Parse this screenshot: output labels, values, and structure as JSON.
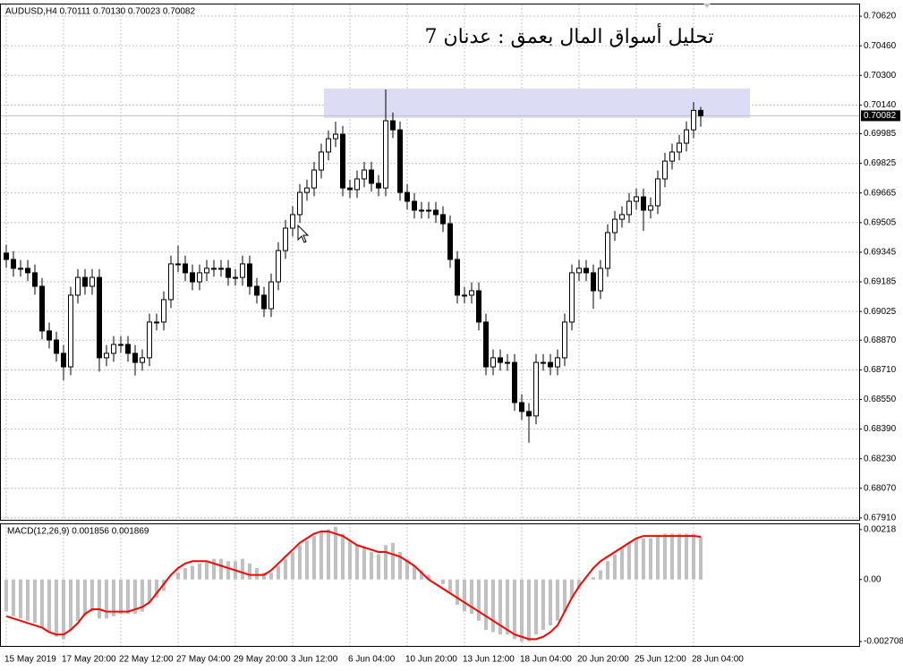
{
  "chart_data": [
    {
      "type": "candlestick",
      "header": "AUDUSD,H4  0.70111 0.70130 0.70023 0.70082",
      "title": "تحليل أسواق المال بعمق : عدنان 7",
      "categories": [
        "15 May 2019",
        null,
        null,
        null,
        null,
        null,
        null,
        null,
        "17 May 20:00",
        null,
        null,
        null,
        null,
        null,
        null,
        null,
        "22 May 12:00",
        null,
        null,
        null,
        null,
        null,
        null,
        null,
        "27 May 04:00",
        null,
        null,
        null,
        null,
        null,
        null,
        null,
        "29 May 20:00",
        null,
        null,
        null,
        null,
        null,
        null,
        null,
        "3 Jun 12:00",
        null,
        null,
        null,
        null,
        null,
        null,
        null,
        "6 Jun 04:00",
        null,
        null,
        null,
        null,
        null,
        null,
        null,
        "10 Jun 20:00",
        null,
        null,
        null,
        null,
        null,
        null,
        null,
        "13 Jun 12:00",
        null,
        null,
        null,
        null,
        null,
        null,
        null,
        "18 Jun 04:00",
        null,
        null,
        null,
        null,
        null,
        null,
        null,
        "20 Jun 20:00",
        null,
        null,
        null,
        null,
        null,
        null,
        null,
        "25 Jun 12:00",
        null,
        null,
        null,
        null,
        null,
        null,
        null,
        "28 Jun 04:00",
        null
      ],
      "open": [
        0.6934,
        0.69306,
        0.69258,
        0.69258,
        0.69234,
        0.69161,
        0.6892,
        0.68871,
        0.68799,
        0.68726,
        0.69113,
        0.69209,
        0.69161,
        0.69209,
        0.68775,
        0.68799,
        0.68847,
        0.68847,
        0.68799,
        0.6875,
        0.68775,
        0.68968,
        0.68968,
        0.69089,
        0.69282,
        0.69282,
        0.69234,
        0.69185,
        0.69234,
        0.69258,
        0.69258,
        0.69258,
        0.69209,
        0.69209,
        0.69282,
        0.69161,
        0.69113,
        0.6904,
        0.69185,
        0.69354,
        0.69475,
        0.69548,
        0.69668,
        0.69692,
        0.69789,
        0.69886,
        0.69958,
        0.69982,
        0.69692,
        0.69683,
        0.69741,
        0.69789,
        0.69717,
        0.69692,
        0.70055,
        0.70006,
        0.69668,
        0.6962,
        0.69572,
        0.69572,
        0.69572,
        0.69548,
        0.69499,
        0.69306,
        0.69113,
        0.69113,
        0.69137,
        0.68968,
        0.68726,
        0.68775,
        0.6875,
        0.6875,
        0.68533,
        0.68485,
        0.68461,
        0.6875,
        0.6875,
        0.68726,
        0.68775,
        0.68968,
        0.69234,
        0.69258,
        0.69234,
        0.69137,
        0.69258,
        0.69451,
        0.69523,
        0.69548,
        0.6962,
        0.69644,
        0.69572,
        0.69596,
        0.69741,
        0.69837,
        0.69886,
        0.69934,
        0.70006,
        0.70111
      ],
      "high": [
        0.69385,
        0.69351,
        0.69303,
        0.69303,
        0.69279,
        0.69206,
        0.68965,
        0.68916,
        0.68844,
        0.69158,
        0.69254,
        0.69254,
        0.69254,
        0.69254,
        0.68844,
        0.68892,
        0.68892,
        0.68892,
        0.68844,
        0.6882,
        0.69013,
        0.69013,
        0.69134,
        0.69327,
        0.6938,
        0.69327,
        0.69279,
        0.69279,
        0.69303,
        0.69303,
        0.69303,
        0.69303,
        0.69254,
        0.69327,
        0.69327,
        0.69206,
        0.69158,
        0.6923,
        0.69399,
        0.6952,
        0.69593,
        0.69713,
        0.69737,
        0.69834,
        0.69931,
        0.70003,
        0.7005,
        0.70027,
        0.69737,
        0.69786,
        0.69834,
        0.69834,
        0.69762,
        0.70224,
        0.701,
        0.70051,
        0.69713,
        0.69665,
        0.69617,
        0.69617,
        0.69617,
        0.69593,
        0.69544,
        0.69351,
        0.69158,
        0.69182,
        0.69182,
        0.69013,
        0.6882,
        0.6882,
        0.68795,
        0.68795,
        0.68578,
        0.6853,
        0.68795,
        0.68795,
        0.68795,
        0.6882,
        0.69013,
        0.69279,
        0.69303,
        0.69303,
        0.69279,
        0.69303,
        0.69496,
        0.69568,
        0.69593,
        0.69665,
        0.69689,
        0.69689,
        0.69641,
        0.69786,
        0.69882,
        0.69931,
        0.69979,
        0.70051,
        0.70156,
        0.7013
      ],
      "low": [
        0.69261,
        0.69213,
        0.69213,
        0.69189,
        0.69116,
        0.68875,
        0.68826,
        0.68754,
        0.68654,
        0.68681,
        0.69068,
        0.69116,
        0.69116,
        0.687,
        0.6873,
        0.68754,
        0.68802,
        0.68754,
        0.6868,
        0.68705,
        0.6873,
        0.68923,
        0.68923,
        0.69044,
        0.69237,
        0.69189,
        0.6914,
        0.6914,
        0.69189,
        0.69213,
        0.69213,
        0.69164,
        0.69164,
        0.69164,
        0.69116,
        0.69068,
        0.68995,
        0.68995,
        0.6914,
        0.69309,
        0.6943,
        0.69503,
        0.69623,
        0.69647,
        0.69744,
        0.69841,
        0.69913,
        0.69647,
        0.69638,
        0.69638,
        0.69696,
        0.69672,
        0.69647,
        0.69647,
        0.69961,
        0.69623,
        0.69575,
        0.69527,
        0.69527,
        0.69527,
        0.69503,
        0.69454,
        0.69261,
        0.69068,
        0.69068,
        0.69068,
        0.68923,
        0.68681,
        0.68681,
        0.68705,
        0.68705,
        0.68488,
        0.6844,
        0.68316,
        0.68416,
        0.68705,
        0.68681,
        0.68681,
        0.6873,
        0.68923,
        0.69189,
        0.69189,
        0.6904,
        0.69092,
        0.69213,
        0.69406,
        0.69478,
        0.69503,
        0.69575,
        0.6946,
        0.69527,
        0.69551,
        0.69696,
        0.69792,
        0.69841,
        0.69889,
        0.69961,
        0.70023
      ],
      "close": [
        0.69306,
        0.69258,
        0.69258,
        0.69234,
        0.69161,
        0.6892,
        0.68871,
        0.68799,
        0.68726,
        0.69113,
        0.69209,
        0.69161,
        0.69209,
        0.68775,
        0.68799,
        0.68847,
        0.68847,
        0.68799,
        0.6875,
        0.68775,
        0.68968,
        0.68968,
        0.69089,
        0.69282,
        0.69282,
        0.69234,
        0.69185,
        0.69234,
        0.69258,
        0.69258,
        0.69258,
        0.69209,
        0.69209,
        0.69282,
        0.69161,
        0.69113,
        0.6904,
        0.69185,
        0.69354,
        0.69475,
        0.69548,
        0.69668,
        0.69692,
        0.69789,
        0.69886,
        0.69958,
        0.69982,
        0.69692,
        0.69683,
        0.69741,
        0.69789,
        0.69717,
        0.69692,
        0.70055,
        0.70006,
        0.69668,
        0.6962,
        0.69572,
        0.69572,
        0.69572,
        0.69548,
        0.69499,
        0.69306,
        0.69113,
        0.69113,
        0.69137,
        0.68968,
        0.68726,
        0.68775,
        0.6875,
        0.6875,
        0.68533,
        0.68485,
        0.68461,
        0.6875,
        0.6875,
        0.68726,
        0.68775,
        0.68968,
        0.69234,
        0.69258,
        0.69234,
        0.69137,
        0.69258,
        0.69451,
        0.69523,
        0.69548,
        0.6962,
        0.69644,
        0.69572,
        0.69596,
        0.69741,
        0.69837,
        0.69886,
        0.69934,
        0.70006,
        0.70111,
        0.70082
      ],
      "up_color": "#ffffff",
      "down_color": "#000000",
      "outline_color": "#000000",
      "ylim": [
        0.679,
        0.70683
      ],
      "yticks": [
        {
          "value": 0.7062,
          "label": "0.70620"
        },
        {
          "value": 0.7046,
          "label": "0.70460"
        },
        {
          "value": 0.703,
          "label": "0.70300"
        },
        {
          "value": 0.7014,
          "label": "0.70140"
        },
        0.69985,
        0.69825,
        0.69665,
        0.69505,
        0.69345,
        0.69185,
        0.69025,
        {
          "value": 0.6887,
          "label": "0.68870"
        },
        {
          "value": 0.6871,
          "label": "0.68710"
        },
        {
          "value": 0.6855,
          "label": "0.68550"
        },
        {
          "value": 0.6839,
          "label": "0.68390"
        },
        {
          "value": 0.6823,
          "label": "0.68230"
        },
        {
          "value": 0.6807,
          "label": "0.68070"
        },
        {
          "value": 0.6791,
          "label": "0.67910"
        }
      ],
      "grid": true,
      "current_price": 0.70082,
      "zone": [
        0.7007,
        0.70229
      ],
      "zone_color": "#dcdcf5"
    },
    {
      "type": "macd",
      "label": "MACD(12,26,9) 0.001856 0.001869",
      "ylim": [
        -0.0029,
        0.00245
      ],
      "yticks": [
        0.00218,
        {
          "value": 0,
          "label": "0.00"
        },
        -0.002708
      ],
      "series": [
        {
          "type": "bar",
          "color": "#c0c0c0",
          "values": [
            -0.0014,
            -0.0016,
            -0.0017,
            -0.0018,
            -0.0019,
            -0.0021,
            -0.0023,
            -0.0025,
            -0.0026,
            -0.0022,
            -0.0018,
            -0.0016,
            -0.0014,
            -0.0017,
            -0.0017,
            -0.0016,
            -0.0015,
            -0.0015,
            -0.0015,
            -0.0014,
            -0.001,
            -0.0008,
            -0.0005,
            0.0,
            0.0003,
            0.0005,
            0.0006,
            0.0007,
            0.0008,
            0.0009,
            0.0009,
            0.0008,
            0.0008,
            0.0009,
            0.0007,
            0.0005,
            0.0003,
            0.0003,
            0.0006,
            0.0009,
            0.0012,
            0.0015,
            0.0017,
            0.0019,
            0.0021,
            0.0022,
            0.0023,
            0.002,
            0.0017,
            0.0015,
            0.0014,
            0.0012,
            0.0011,
            0.0015,
            0.0016,
            0.0012,
            0.0009,
            0.0006,
            0.0004,
            0.0002,
            0.0,
            -0.0002,
            -0.0006,
            -0.0011,
            -0.0014,
            -0.0015,
            -0.0018,
            -0.0022,
            -0.0023,
            -0.0024,
            -0.0024,
            -0.0026,
            -0.0027,
            -0.0027,
            -0.0024,
            -0.0022,
            -0.002,
            -0.0018,
            -0.0014,
            -0.0008,
            -0.0004,
            0.0,
            0.0001,
            0.0004,
            0.0008,
            0.0011,
            0.0014,
            0.0016,
            0.0018,
            0.0018,
            0.0018,
            0.0019,
            0.002,
            0.002,
            0.002,
            0.002,
            0.002,
            0.001856
          ]
        },
        {
          "type": "line",
          "color": "#ff0000",
          "values": [
            -0.0016,
            -0.0017,
            -0.0018,
            -0.0019,
            -0.002,
            -0.0021,
            -0.0023,
            -0.0024,
            -0.0024,
            -0.0022,
            -0.0019,
            -0.0015,
            -0.0013,
            -0.0013,
            -0.0014,
            -0.0014,
            -0.0014,
            -0.0014,
            -0.0013,
            -0.0012,
            -0.001,
            -0.0006,
            -0.0002,
            0.0002,
            0.0005,
            0.0007,
            0.0008,
            0.0008,
            0.0008,
            0.0007,
            0.0006,
            0.0005,
            0.0004,
            0.0003,
            0.0002,
            0.0002,
            0.0002,
            0.0004,
            0.0007,
            0.001,
            0.0013,
            0.0016,
            0.0018,
            0.002,
            0.0021,
            0.0021,
            0.002,
            0.0019,
            0.0017,
            0.0015,
            0.0014,
            0.0013,
            0.0012,
            0.0012,
            0.0011,
            0.001,
            0.0008,
            0.0006,
            0.0003,
            0.0,
            -0.0002,
            -0.0004,
            -0.0006,
            -0.0008,
            -0.001,
            -0.0012,
            -0.0014,
            -0.0016,
            -0.0018,
            -0.002,
            -0.0022,
            -0.0024,
            -0.0025,
            -0.0026,
            -0.0026,
            -0.0025,
            -0.0023,
            -0.002,
            -0.0014,
            -0.0008,
            -0.0003,
            0.0001,
            0.0005,
            0.0008,
            0.001,
            0.0012,
            0.0014,
            0.0016,
            0.0018,
            0.0019,
            0.0019,
            0.0019,
            0.0019,
            0.0019,
            0.0019,
            0.0019,
            0.0019,
            0.001869
          ]
        }
      ]
    }
  ]
}
